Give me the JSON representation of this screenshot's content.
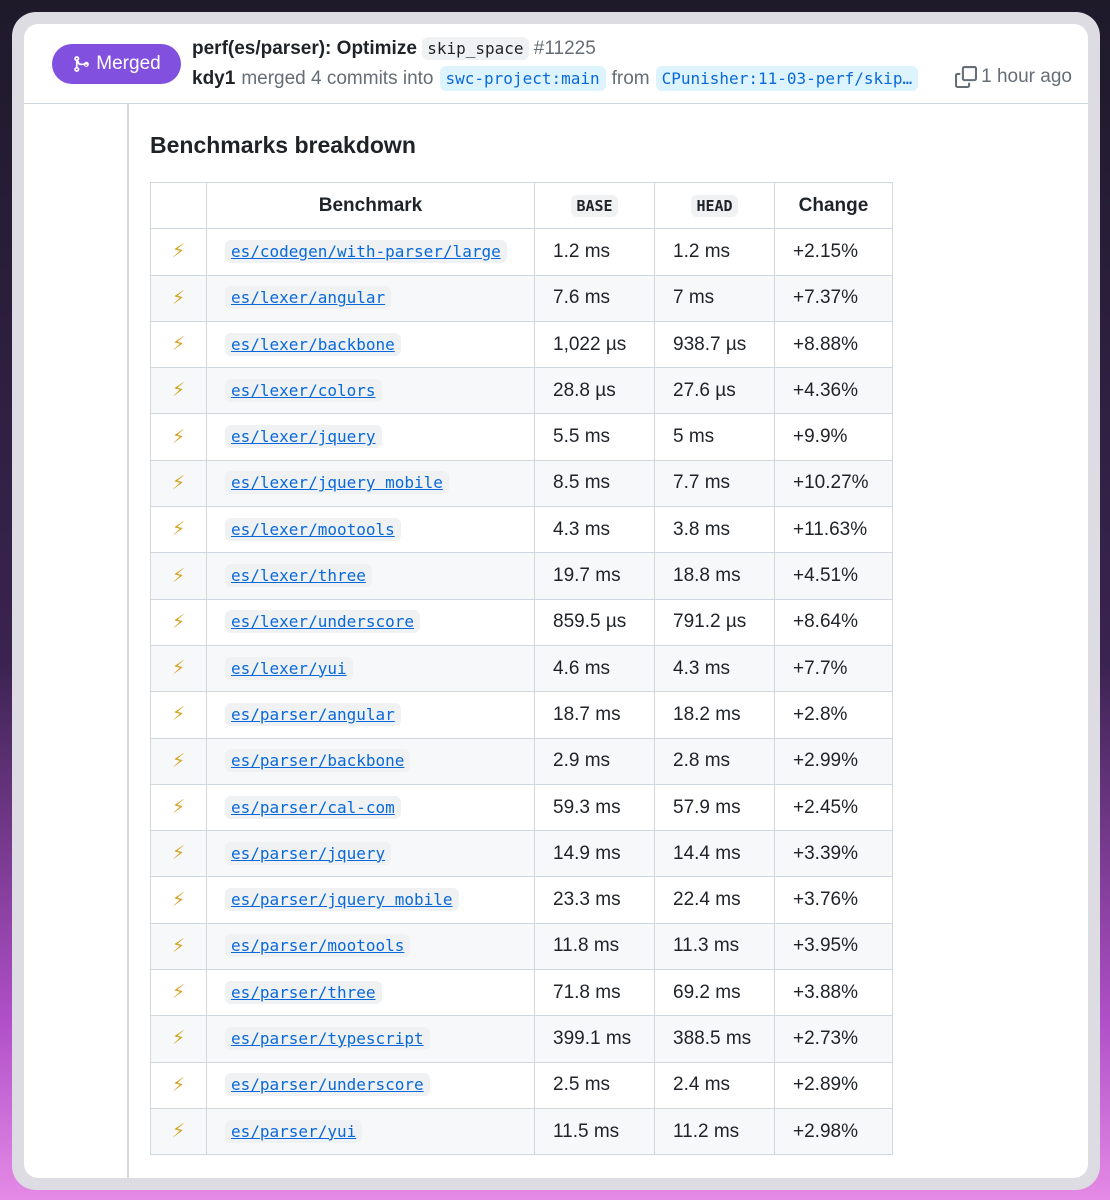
{
  "header": {
    "status": "Merged",
    "title": "perf(es/parser): Optimize",
    "title_code": "skip_space",
    "number": "#11225",
    "author": "kdy1",
    "action": "merged 4 commits into",
    "base_branch": "swc-project:main",
    "from": "from",
    "head_branch": "CPunisher:11-03-perf/skip…",
    "time": "1 hour ago"
  },
  "section_title": "Benchmarks breakdown",
  "table": {
    "columns": [
      "Benchmark",
      "BASE",
      "HEAD",
      "Change"
    ],
    "rows": [
      [
        "⚡",
        "es/codegen/with-parser/large",
        "1.2 ms",
        "1.2 ms",
        "+2.15%"
      ],
      [
        "⚡",
        "es/lexer/angular",
        "7.6 ms",
        "7 ms",
        "+7.37%"
      ],
      [
        "⚡",
        "es/lexer/backbone",
        "1,022 µs",
        "938.7 µs",
        "+8.88%"
      ],
      [
        "⚡",
        "es/lexer/colors",
        "28.8 µs",
        "27.6 µs",
        "+4.36%"
      ],
      [
        "⚡",
        "es/lexer/jquery",
        "5.5 ms",
        "5 ms",
        "+9.9%"
      ],
      [
        "⚡",
        "es/lexer/jquery mobile",
        "8.5 ms",
        "7.7 ms",
        "+10.27%"
      ],
      [
        "⚡",
        "es/lexer/mootools",
        "4.3 ms",
        "3.8 ms",
        "+11.63%"
      ],
      [
        "⚡",
        "es/lexer/three",
        "19.7 ms",
        "18.8 ms",
        "+4.51%"
      ],
      [
        "⚡",
        "es/lexer/underscore",
        "859.5 µs",
        "791.2 µs",
        "+8.64%"
      ],
      [
        "⚡",
        "es/lexer/yui",
        "4.6 ms",
        "4.3 ms",
        "+7.7%"
      ],
      [
        "⚡",
        "es/parser/angular",
        "18.7 ms",
        "18.2 ms",
        "+2.8%"
      ],
      [
        "⚡",
        "es/parser/backbone",
        "2.9 ms",
        "2.8 ms",
        "+2.99%"
      ],
      [
        "⚡",
        "es/parser/cal-com",
        "59.3 ms",
        "57.9 ms",
        "+2.45%"
      ],
      [
        "⚡",
        "es/parser/jquery",
        "14.9 ms",
        "14.4 ms",
        "+3.39%"
      ],
      [
        "⚡",
        "es/parser/jquery mobile",
        "23.3 ms",
        "22.4 ms",
        "+3.76%"
      ],
      [
        "⚡",
        "es/parser/mootools",
        "11.8 ms",
        "11.3 ms",
        "+3.95%"
      ],
      [
        "⚡",
        "es/parser/three",
        "71.8 ms",
        "69.2 ms",
        "+3.88%"
      ],
      [
        "⚡",
        "es/parser/typescript",
        "399.1 ms",
        "388.5 ms",
        "+2.73%"
      ],
      [
        "⚡",
        "es/parser/underscore",
        "2.5 ms",
        "2.4 ms",
        "+2.89%"
      ],
      [
        "⚡",
        "es/parser/yui",
        "11.5 ms",
        "11.2 ms",
        "+2.98%"
      ]
    ]
  }
}
